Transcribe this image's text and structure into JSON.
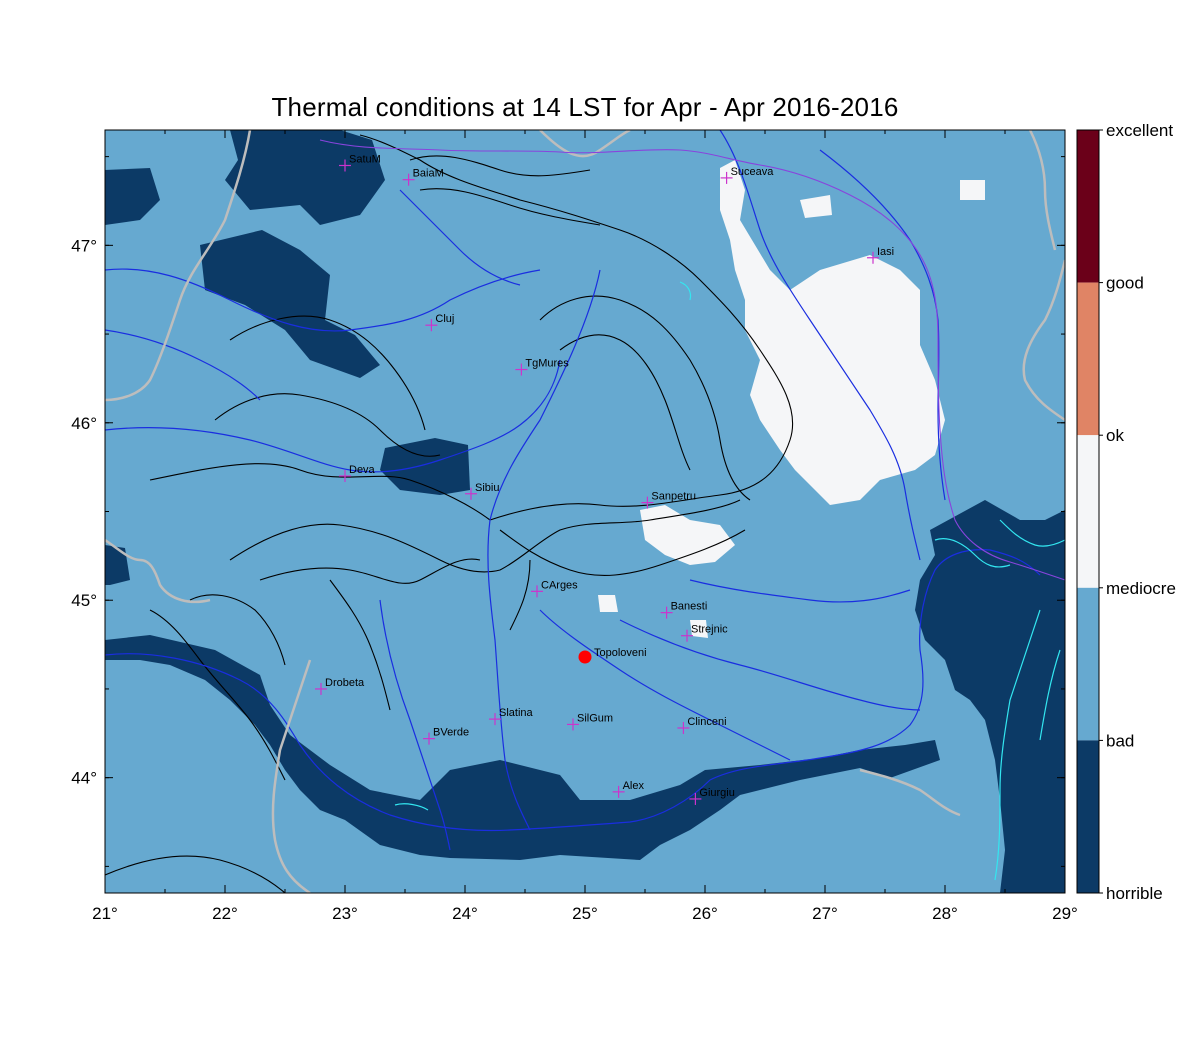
{
  "title": "Thermal conditions at 14 LST for Apr - Apr  2016-2016",
  "colors": {
    "horrible": "#0c3a66",
    "bad": "#66a9d0",
    "mediocre": "#f5f6f8",
    "ok": "#e08465",
    "good": "#6b0019",
    "river": "#1a2ee0",
    "border": "#bdbdbd",
    "lake": "#33e6f0",
    "contour": "#000000",
    "city_marker": "#cc33cc",
    "highlight": "#ff0000"
  },
  "axes": {
    "x_ticks": [
      "21°",
      "22°",
      "23°",
      "24°",
      "25°",
      "26°",
      "27°",
      "28°",
      "29°"
    ],
    "y_ticks": [
      "44°",
      "45°",
      "46°",
      "47°"
    ],
    "lon_range": [
      21,
      29
    ],
    "lat_range": [
      43.35,
      47.65
    ]
  },
  "legend": {
    "labels": [
      "excellent",
      "good",
      "ok",
      "mediocre",
      "bad",
      "horrible"
    ]
  },
  "cities": [
    {
      "name": "SatuM",
      "lon": 23.0,
      "lat": 47.45
    },
    {
      "name": "BaiaM",
      "lon": 23.53,
      "lat": 47.37
    },
    {
      "name": "Suceava",
      "lon": 26.18,
      "lat": 47.38
    },
    {
      "name": "Iasi",
      "lon": 27.4,
      "lat": 46.93
    },
    {
      "name": "Cluj",
      "lon": 23.72,
      "lat": 46.55
    },
    {
      "name": "TgMures",
      "lon": 24.47,
      "lat": 46.3
    },
    {
      "name": "Deva",
      "lon": 23.0,
      "lat": 45.7
    },
    {
      "name": "Sibiu",
      "lon": 24.05,
      "lat": 45.6
    },
    {
      "name": "Sanpetru",
      "lon": 25.52,
      "lat": 45.55
    },
    {
      "name": "CArges",
      "lon": 24.6,
      "lat": 45.05
    },
    {
      "name": "Banesti",
      "lon": 25.68,
      "lat": 44.93
    },
    {
      "name": "Strejnic",
      "lon": 25.85,
      "lat": 44.8
    },
    {
      "name": "Drobeta",
      "lon": 22.8,
      "lat": 44.5
    },
    {
      "name": "Slatina",
      "lon": 24.25,
      "lat": 44.33
    },
    {
      "name": "SilGum",
      "lon": 24.9,
      "lat": 44.3
    },
    {
      "name": "Clinceni",
      "lon": 25.82,
      "lat": 44.28
    },
    {
      "name": "BVerde",
      "lon": 23.7,
      "lat": 44.22
    },
    {
      "name": "Alex",
      "lon": 25.28,
      "lat": 43.92
    },
    {
      "name": "Giurgiu",
      "lon": 25.92,
      "lat": 43.88
    }
  ],
  "highlight": {
    "name": "Topoloveni",
    "lon": 25.0,
    "lat": 44.68
  }
}
